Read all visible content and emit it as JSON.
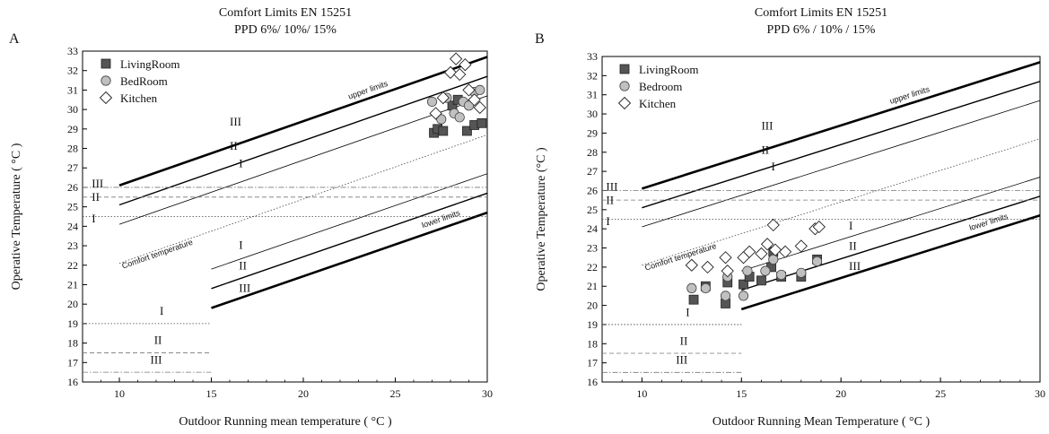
{
  "chart_data": [
    {
      "type": "scatter",
      "panel": "A",
      "title": "Comfort Limits EN 15251",
      "subtitle": "PPD 6%/ 10%/ 15%",
      "xlabel": "Outdoor Running mean temperature ( °C )",
      "ylabel": "Operative Temperature  ( °C )",
      "xlim": [
        8,
        30
      ],
      "ylim": [
        16,
        33
      ],
      "xticks": [
        10,
        15,
        20,
        25,
        30
      ],
      "yticks": [
        16,
        17,
        18,
        19,
        20,
        21,
        22,
        23,
        24,
        25,
        26,
        27,
        28,
        29,
        30,
        31,
        32,
        33
      ],
      "legend_position": "top-left",
      "series": [
        {
          "name": "LivingRoom",
          "marker": "square",
          "color": "#555555",
          "points": [
            [
              27.1,
              28.8
            ],
            [
              27.3,
              29.0
            ],
            [
              27.6,
              28.9
            ],
            [
              28.1,
              30.2
            ],
            [
              28.4,
              30.5
            ],
            [
              28.9,
              28.9
            ],
            [
              29.3,
              29.2
            ],
            [
              29.7,
              29.3
            ]
          ]
        },
        {
          "name": "BedRoom",
          "marker": "circle",
          "color": "#c0c0c0",
          "points": [
            [
              27.0,
              30.4
            ],
            [
              27.5,
              29.5
            ],
            [
              27.8,
              30.6
            ],
            [
              28.2,
              29.8
            ],
            [
              28.5,
              29.6
            ],
            [
              28.7,
              30.4
            ],
            [
              29.0,
              30.2
            ],
            [
              29.3,
              30.9
            ],
            [
              29.6,
              31.0
            ]
          ]
        },
        {
          "name": "Kitchen",
          "marker": "diamond",
          "color": "#ffffff",
          "points": [
            [
              27.2,
              29.8
            ],
            [
              27.6,
              30.6
            ],
            [
              28.0,
              31.9
            ],
            [
              28.3,
              32.6
            ],
            [
              28.5,
              31.8
            ],
            [
              28.8,
              32.3
            ],
            [
              29.0,
              31.0
            ],
            [
              29.3,
              30.5
            ],
            [
              29.6,
              30.1
            ]
          ]
        }
      ],
      "lines": [
        {
          "name": "upper-III",
          "label": "III",
          "points": [
            [
              10,
              26.1
            ],
            [
              30,
              32.7
            ]
          ],
          "style": "bold"
        },
        {
          "name": "upper-II",
          "label": "II",
          "points": [
            [
              10,
              25.1
            ],
            [
              30,
              31.7
            ]
          ],
          "style": "medium"
        },
        {
          "name": "upper-I",
          "label": "I",
          "points": [
            [
              10,
              24.1
            ],
            [
              30,
              30.7
            ]
          ],
          "style": "thin"
        },
        {
          "name": "comfort",
          "label": "Comfort temperature",
          "points": [
            [
              10,
              22.1
            ],
            [
              30,
              28.7
            ]
          ],
          "style": "dotted"
        },
        {
          "name": "lower-I",
          "label": "I",
          "points": [
            [
              15,
              21.8
            ],
            [
              30,
              26.7
            ]
          ],
          "style": "thin"
        },
        {
          "name": "lower-II",
          "label": "II",
          "points": [
            [
              15,
              20.8
            ],
            [
              30,
              25.7
            ]
          ],
          "style": "medium"
        },
        {
          "name": "lower-III",
          "label": "III",
          "points": [
            [
              15,
              19.8
            ],
            [
              30,
              24.7
            ]
          ],
          "style": "bold"
        },
        {
          "name": "h-upper-III",
          "label": "III",
          "points": [
            [
              8,
              26.0
            ],
            [
              30,
              26.0
            ]
          ],
          "style": "dashdot"
        },
        {
          "name": "h-upper-II",
          "label": "II",
          "points": [
            [
              8,
              25.5
            ],
            [
              30,
              25.5
            ]
          ],
          "style": "dashed"
        },
        {
          "name": "h-upper-I",
          "label": "I",
          "points": [
            [
              8,
              24.5
            ],
            [
              30,
              24.5
            ]
          ],
          "style": "dotted"
        },
        {
          "name": "h-lower-I",
          "label": "I",
          "points": [
            [
              8,
              19.0
            ],
            [
              15,
              19.0
            ]
          ],
          "style": "dotted"
        },
        {
          "name": "h-lower-II",
          "label": "II",
          "points": [
            [
              8,
              17.5
            ],
            [
              15,
              17.5
            ]
          ],
          "style": "dashed"
        },
        {
          "name": "h-lower-III",
          "label": "III",
          "points": [
            [
              8,
              16.5
            ],
            [
              15,
              16.5
            ]
          ],
          "style": "dashdot"
        }
      ],
      "annotations": {
        "upper": "upper limits",
        "lower": "lower limits"
      }
    },
    {
      "type": "scatter",
      "panel": "B",
      "title": "Comfort Limits EN 15251",
      "subtitle": "PPD 6% / 10% / 15%",
      "xlabel": "Outdoor Running Mean Temperature ( °C )",
      "ylabel": "Operative Temperature (°C )",
      "xlim": [
        8,
        30
      ],
      "ylim": [
        16,
        33
      ],
      "xticks": [
        10,
        15,
        20,
        25,
        30
      ],
      "yticks": [
        16,
        17,
        18,
        19,
        20,
        21,
        22,
        23,
        24,
        25,
        26,
        27,
        28,
        29,
        30,
        31,
        32,
        33
      ],
      "legend_position": "top-left",
      "series": [
        {
          "name": "LivingRoom",
          "marker": "square",
          "color": "#555555",
          "points": [
            [
              12.6,
              20.3
            ],
            [
              13.2,
              21.0
            ],
            [
              14.2,
              20.1
            ],
            [
              14.3,
              21.2
            ],
            [
              15.1,
              21.1
            ],
            [
              15.4,
              21.5
            ],
            [
              16.0,
              21.3
            ],
            [
              16.5,
              22.0
            ],
            [
              16.6,
              22.8
            ],
            [
              17.0,
              21.5
            ],
            [
              18.0,
              21.5
            ],
            [
              18.8,
              22.4
            ]
          ]
        },
        {
          "name": "Bedroom",
          "marker": "circle",
          "color": "#c0c0c0",
          "points": [
            [
              12.5,
              20.9
            ],
            [
              13.2,
              20.9
            ],
            [
              14.2,
              20.5
            ],
            [
              14.3,
              21.5
            ],
            [
              15.1,
              20.5
            ],
            [
              15.3,
              21.8
            ],
            [
              16.2,
              21.8
            ],
            [
              16.6,
              22.4
            ],
            [
              17.0,
              21.6
            ],
            [
              18.0,
              21.7
            ],
            [
              18.8,
              22.3
            ]
          ]
        },
        {
          "name": "Kitchen",
          "marker": "diamond",
          "color": "#ffffff",
          "points": [
            [
              12.5,
              22.1
            ],
            [
              13.3,
              22.0
            ],
            [
              14.2,
              22.5
            ],
            [
              14.3,
              21.8
            ],
            [
              15.1,
              22.5
            ],
            [
              15.4,
              22.8
            ],
            [
              16.0,
              22.7
            ],
            [
              16.3,
              23.2
            ],
            [
              16.6,
              24.2
            ],
            [
              16.7,
              22.9
            ],
            [
              17.2,
              22.8
            ],
            [
              18.0,
              23.1
            ],
            [
              18.7,
              24.0
            ],
            [
              18.9,
              24.1
            ]
          ]
        }
      ],
      "lines": [
        {
          "name": "upper-III",
          "label": "III",
          "points": [
            [
              10,
              26.1
            ],
            [
              30,
              32.7
            ]
          ],
          "style": "bold"
        },
        {
          "name": "upper-II",
          "label": "II",
          "points": [
            [
              10,
              25.1
            ],
            [
              30,
              31.7
            ]
          ],
          "style": "medium"
        },
        {
          "name": "upper-I",
          "label": "I",
          "points": [
            [
              10,
              24.1
            ],
            [
              30,
              30.7
            ]
          ],
          "style": "thin"
        },
        {
          "name": "comfort",
          "label": "Comfort temperature",
          "points": [
            [
              10,
              22.1
            ],
            [
              30,
              28.7
            ]
          ],
          "style": "dotted"
        },
        {
          "name": "lower-I",
          "label": "I",
          "points": [
            [
              15,
              21.8
            ],
            [
              30,
              26.7
            ]
          ],
          "style": "thin"
        },
        {
          "name": "lower-II",
          "label": "II",
          "points": [
            [
              15,
              20.8
            ],
            [
              30,
              25.7
            ]
          ],
          "style": "medium"
        },
        {
          "name": "lower-III",
          "label": "III",
          "points": [
            [
              15,
              19.8
            ],
            [
              30,
              24.7
            ]
          ],
          "style": "bold"
        },
        {
          "name": "h-upper-III",
          "label": "III",
          "points": [
            [
              8,
              26.0
            ],
            [
              30,
              26.0
            ]
          ],
          "style": "dashdot"
        },
        {
          "name": "h-upper-II",
          "label": "II",
          "points": [
            [
              8,
              25.5
            ],
            [
              30,
              25.5
            ]
          ],
          "style": "dashed"
        },
        {
          "name": "h-upper-I",
          "label": "I",
          "points": [
            [
              8,
              24.5
            ],
            [
              30,
              24.5
            ]
          ],
          "style": "dotted"
        },
        {
          "name": "h-lower-I",
          "label": "I",
          "points": [
            [
              8,
              19.0
            ],
            [
              15,
              19.0
            ]
          ],
          "style": "dotted"
        },
        {
          "name": "h-lower-II",
          "label": "II",
          "points": [
            [
              8,
              17.5
            ],
            [
              15,
              17.5
            ]
          ],
          "style": "dashed"
        },
        {
          "name": "h-lower-III",
          "label": "III",
          "points": [
            [
              8,
              16.5
            ],
            [
              15,
              16.5
            ]
          ],
          "style": "dashdot"
        }
      ],
      "annotations": {
        "upper": "upper limits",
        "lower": "lower limits"
      }
    }
  ]
}
